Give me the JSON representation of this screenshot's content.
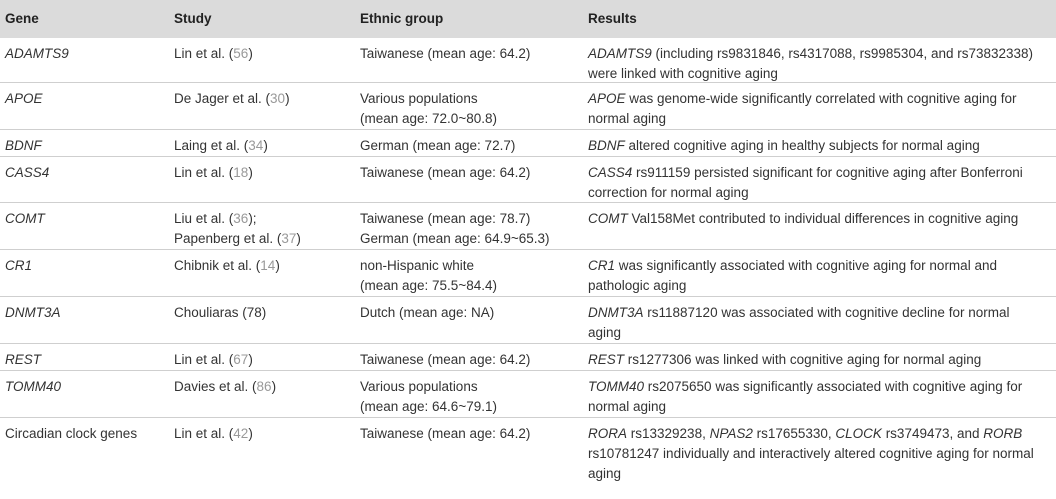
{
  "columns": [
    "Gene",
    "Study",
    "Ethnic group",
    "Results"
  ],
  "rows": [
    {
      "gene": "ADAMTS9",
      "gene_italic": true,
      "h": 44,
      "study": [
        [
          {
            "t": "Lin et al. ("
          },
          {
            "t": "56",
            "ref": true
          },
          {
            "t": ")"
          }
        ]
      ],
      "ethnic": [
        "Taiwanese (mean age: 64.2)"
      ],
      "results": [
        [
          {
            "t": "ADAMTS9",
            "i": true
          },
          {
            "t": " (including rs9831846, rs4317088, rs9985304, and rs73832338)"
          }
        ],
        [
          {
            "t": "were linked with cognitive aging"
          }
        ]
      ]
    },
    {
      "gene": "APOE",
      "gene_italic": true,
      "h": 46,
      "study": [
        [
          {
            "t": "De Jager et al. ("
          },
          {
            "t": "30",
            "ref": true
          },
          {
            "t": ")"
          }
        ]
      ],
      "ethnic": [
        "Various populations",
        "(mean age: 72.0~80.8)"
      ],
      "results": [
        [
          {
            "t": "APOE",
            "i": true
          },
          {
            "t": " was genome-wide significantly correlated with cognitive aging for"
          }
        ],
        [
          {
            "t": "normal aging"
          }
        ]
      ]
    },
    {
      "gene": "BDNF",
      "gene_italic": true,
      "h": 26,
      "study": [
        [
          {
            "t": "Laing et al. ("
          },
          {
            "t": "34",
            "ref": true
          },
          {
            "t": ")"
          }
        ]
      ],
      "ethnic": [
        "German (mean age: 72.7)"
      ],
      "results": [
        [
          {
            "t": "BDNF",
            "i": true
          },
          {
            "t": " altered cognitive aging in healthy subjects for normal aging"
          }
        ]
      ]
    },
    {
      "gene": "CASS4",
      "gene_italic": true,
      "h": 45,
      "study": [
        [
          {
            "t": "Lin et al. ("
          },
          {
            "t": "18",
            "ref": true
          },
          {
            "t": ")"
          }
        ]
      ],
      "ethnic": [
        "Taiwanese (mean age: 64.2)"
      ],
      "results": [
        [
          {
            "t": "CASS4",
            "i": true
          },
          {
            "t": " rs911159 persisted significant for cognitive aging after Bonferroni"
          }
        ],
        [
          {
            "t": "correction for normal aging"
          }
        ]
      ]
    },
    {
      "gene": "COMT",
      "gene_italic": true,
      "h": 46,
      "study": [
        [
          {
            "t": "Liu et al. ("
          },
          {
            "t": "36",
            "ref": true
          },
          {
            "t": ");"
          }
        ],
        [
          {
            "t": "Papenberg et al. ("
          },
          {
            "t": "37",
            "ref": true
          },
          {
            "t": ")"
          }
        ]
      ],
      "ethnic": [
        "Taiwanese (mean age: 78.7)",
        "German (mean age: 64.9~65.3)"
      ],
      "results": [
        [
          {
            "t": "COMT",
            "i": true
          },
          {
            "t": " Val158Met contributed to individual differences in cognitive aging"
          }
        ]
      ]
    },
    {
      "gene": "CR1",
      "gene_italic": true,
      "h": 46,
      "study": [
        [
          {
            "t": "Chibnik et al. ("
          },
          {
            "t": "14",
            "ref": true
          },
          {
            "t": ")"
          }
        ]
      ],
      "ethnic": [
        "non-Hispanic white",
        "(mean age: 75.5~84.4)"
      ],
      "results": [
        [
          {
            "t": "CR1",
            "i": true
          },
          {
            "t": " was significantly associated with cognitive aging for normal and"
          }
        ],
        [
          {
            "t": "pathologic aging"
          }
        ]
      ]
    },
    {
      "gene": "DNMT3A",
      "gene_italic": true,
      "h": 46,
      "study": [
        [
          {
            "t": "Chouliaras (78)"
          }
        ]
      ],
      "ethnic": [
        "Dutch (mean age: NA)"
      ],
      "results": [
        [
          {
            "t": "DNMT3A",
            "i": true
          },
          {
            "t": " rs11887120 was associated with cognitive decline for normal"
          }
        ],
        [
          {
            "t": "aging"
          }
        ]
      ]
    },
    {
      "gene": "REST",
      "gene_italic": true,
      "h": 26,
      "study": [
        [
          {
            "t": "Lin et al. ("
          },
          {
            "t": "67",
            "ref": true
          },
          {
            "t": ")"
          }
        ]
      ],
      "ethnic": [
        "Taiwanese (mean age: 64.2)"
      ],
      "results": [
        [
          {
            "t": "REST",
            "i": true
          },
          {
            "t": " rs1277306 was linked with cognitive aging for normal aging"
          }
        ]
      ]
    },
    {
      "gene": "TOMM40",
      "gene_italic": true,
      "h": 46,
      "study": [
        [
          {
            "t": "Davies et al. ("
          },
          {
            "t": "86",
            "ref": true
          },
          {
            "t": ")"
          }
        ]
      ],
      "ethnic": [
        "Various populations",
        "(mean age: 64.6~79.1)"
      ],
      "results": [
        [
          {
            "t": "TOMM40",
            "i": true
          },
          {
            "t": " rs2075650 was significantly associated with cognitive aging for"
          }
        ],
        [
          {
            "t": "normal aging"
          }
        ]
      ]
    },
    {
      "gene": "Circadian clock genes",
      "gene_italic": false,
      "h": 66,
      "study": [
        [
          {
            "t": "Lin et al. ("
          },
          {
            "t": "42",
            "ref": true
          },
          {
            "t": ")"
          }
        ]
      ],
      "ethnic": [
        "Taiwanese (mean age: 64.2)"
      ],
      "results": [
        [
          {
            "t": "RORA",
            "i": true
          },
          {
            "t": " rs13329238, "
          },
          {
            "t": "NPAS2",
            "i": true
          },
          {
            "t": " rs17655330, "
          },
          {
            "t": "CLOCK",
            "i": true
          },
          {
            "t": " rs3749473, and "
          },
          {
            "t": "RORB",
            "i": true
          }
        ],
        [
          {
            "t": "rs10781247 individually and interactively altered cognitive aging for normal"
          }
        ],
        [
          {
            "t": "aging"
          }
        ]
      ]
    }
  ]
}
